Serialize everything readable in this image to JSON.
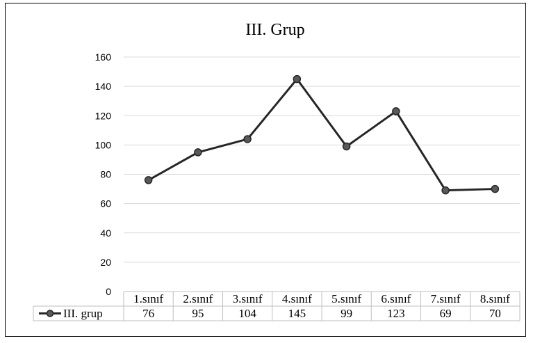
{
  "chart_data": {
    "type": "line",
    "title": "III. Grup",
    "categories": [
      "1.sınıf",
      "2.sınıf",
      "3.sınıf",
      "4.sınıf",
      "5.sınıf",
      "6.sınıf",
      "7.sınıf",
      "8.sınıf"
    ],
    "series": [
      {
        "name": "III. grup",
        "values": [
          76,
          95,
          104,
          145,
          99,
          123,
          69,
          70
        ],
        "color": "#262626"
      }
    ],
    "ylim": [
      0,
      160
    ],
    "yticks": [
      0,
      20,
      40,
      60,
      80,
      100,
      120,
      140,
      160
    ],
    "grid": true,
    "legend": "data-table",
    "data_table": true,
    "colors": {
      "grid": "#d9d9d9",
      "line": "#262626",
      "marker_fill": "#595959"
    }
  }
}
